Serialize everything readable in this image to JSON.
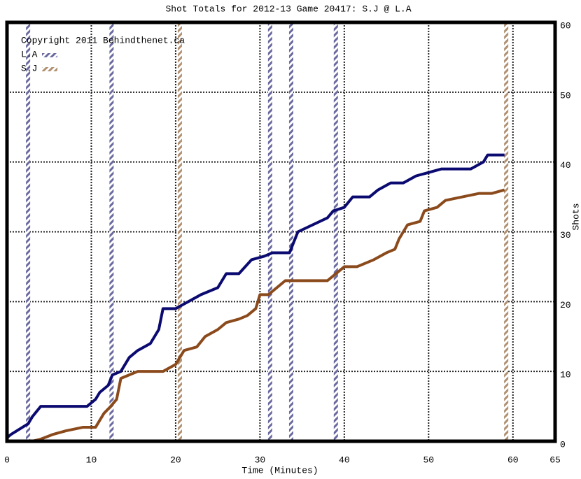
{
  "chart_data": {
    "type": "line",
    "title": "Shot Totals for 2012-13 Game 20417: S.J @ L.A",
    "copyright": "Copyright 2011 Behindthenet.ca",
    "x_label": "Time (Minutes)",
    "y_label": "Shots",
    "xlim": [
      0,
      65
    ],
    "xticks": [
      0,
      10,
      20,
      30,
      40,
      50,
      60,
      65
    ],
    "ylim": [
      0,
      60
    ],
    "yticks": [
      0,
      10,
      20,
      30,
      40,
      50,
      60
    ],
    "grid": true,
    "series": [
      {
        "name": "L.A",
        "color": "#0a0a70",
        "goal_color": "#7a7aa8",
        "x": [
          0,
          0.5,
          2.5,
          3,
          4,
          9.5,
          10.5,
          11,
          12,
          12.5,
          13.5,
          14.5,
          15.5,
          17,
          17.5,
          18,
          18.5,
          20,
          21.5,
          23,
          25,
          26,
          27.5,
          29,
          30.5,
          31.5,
          33.5,
          34.5,
          38,
          38.7,
          40,
          41,
          43,
          44,
          45.5,
          47,
          48.5,
          50,
          51.5,
          55,
          56.5,
          57,
          59
        ],
        "values": [
          0.5,
          1,
          2.5,
          3.5,
          5,
          5,
          6,
          7,
          8,
          9.5,
          10,
          12,
          13,
          14,
          15,
          16,
          19,
          19,
          20,
          21,
          22,
          24,
          24,
          26,
          26.5,
          27,
          27,
          30,
          32,
          33,
          33.5,
          35,
          35,
          36,
          37,
          37,
          38,
          38.5,
          39,
          39,
          40,
          41,
          41
        ],
        "goals": [
          2.5,
          12.4,
          31.2,
          33.7,
          39.0
        ]
      },
      {
        "name": "S.J",
        "color": "#8b4a1c",
        "goal_color": "#b8977a",
        "x": [
          0,
          3,
          4,
          5.5,
          7,
          9,
          10.5,
          11,
          11.5,
          12.3,
          13,
          13.5,
          14.5,
          15.5,
          18.5,
          20,
          21,
          22.5,
          23.5,
          25,
          26,
          27.5,
          28.5,
          29.5,
          30,
          31,
          32,
          33,
          38,
          39,
          40,
          41.5,
          43.5,
          45,
          46,
          46.5,
          47.5,
          49,
          49.5,
          51,
          52,
          54,
          56,
          57.5,
          59
        ],
        "values": [
          0,
          0,
          0.3,
          1,
          1.5,
          2,
          2,
          3,
          4,
          5,
          6,
          9,
          9.5,
          10,
          10,
          11,
          13,
          13.5,
          15,
          16,
          17,
          17.5,
          18,
          19,
          21,
          21,
          22,
          23,
          23,
          24,
          25,
          25,
          26,
          27,
          27.5,
          29,
          31,
          31.5,
          33,
          33.5,
          34.5,
          35,
          35.5,
          35.5,
          36
        ],
        "goals": [
          20.5,
          59.2
        ]
      }
    ]
  }
}
